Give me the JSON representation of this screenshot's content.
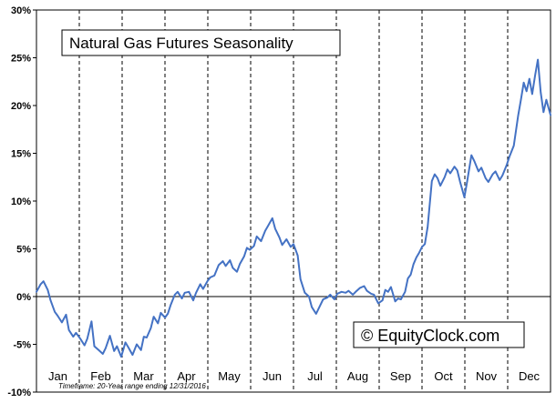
{
  "title": "Natural Gas Futures Seasonality",
  "watermark": "© EquityClock.com",
  "footnote": "Timeframe: 20-Year range ending 12/31/2016",
  "colors": {
    "line": "#4472C4",
    "grid": "#000000",
    "background": "#FFFFFF",
    "text": "#000000"
  },
  "chart_data": {
    "type": "line",
    "title": "Natural Gas Futures Seasonality",
    "xlabel": "",
    "ylabel": "",
    "x_unit": "day of year",
    "xlim": [
      1,
      365
    ],
    "ylim": [
      -10,
      30
    ],
    "y_ticks": [
      30,
      25,
      20,
      15,
      10,
      5,
      0,
      -5,
      -10
    ],
    "y_tick_labels": [
      "30%",
      "25%",
      "20%",
      "15%",
      "10%",
      "5%",
      "0%",
      "-5%",
      "-10%"
    ],
    "x_tick_labels": [
      "Jan",
      "Feb",
      "Mar",
      "Apr",
      "May",
      "Jun",
      "Jul",
      "Aug",
      "Sep",
      "Oct",
      "Nov",
      "Dec"
    ],
    "grid": "vertical dashed at month boundaries, solid zero line",
    "legend": "none",
    "series": [
      {
        "x": [
          1,
          4,
          6,
          9,
          11,
          14,
          16,
          19,
          22,
          24,
          27,
          29,
          32,
          35,
          37,
          40,
          42,
          45,
          48,
          50,
          53,
          56,
          58,
          61,
          64,
          66,
          69,
          72,
          75,
          77,
          79,
          82,
          84,
          87,
          89,
          92,
          94,
          96,
          99,
          101,
          104,
          106,
          109,
          112,
          114,
          117,
          119,
          122,
          124,
          127,
          130,
          133,
          135,
          138,
          140,
          143,
          145,
          148,
          150,
          152,
          155,
          157,
          160,
          163,
          165,
          168,
          170,
          173,
          175,
          178,
          181,
          183,
          186,
          188,
          191,
          194,
          196,
          199,
          201,
          204,
          207,
          209,
          212,
          214,
          217,
          220,
          222,
          225,
          227,
          230,
          233,
          235,
          238,
          240,
          243,
          246,
          248,
          250,
          252,
          255,
          257,
          259,
          262,
          264,
          266,
          268,
          270,
          272,
          274,
          276,
          278,
          281,
          283,
          285,
          287,
          290,
          292,
          294,
          297,
          299,
          301,
          304,
          306,
          309,
          311,
          314,
          316,
          319,
          321,
          324,
          326,
          329,
          331,
          334,
          336,
          339,
          342,
          344,
          346,
          348,
          350,
          352,
          354,
          356,
          358,
          360,
          362,
          365
        ],
        "values": [
          0.5,
          1.3,
          1.6,
          0.7,
          -0.4,
          -1.6,
          -2.0,
          -2.7,
          -1.9,
          -3.5,
          -4.2,
          -3.8,
          -4.4,
          -5.1,
          -4.4,
          -2.6,
          -5.2,
          -5.6,
          -6.0,
          -5.4,
          -4.1,
          -5.7,
          -5.2,
          -6.3,
          -4.8,
          -5.3,
          -6.1,
          -5.0,
          -5.6,
          -4.2,
          -4.3,
          -3.3,
          -2.1,
          -2.8,
          -1.7,
          -2.2,
          -1.8,
          -0.9,
          0.2,
          0.5,
          -0.2,
          0.4,
          0.5,
          -0.4,
          0.4,
          1.3,
          0.8,
          1.6,
          2.0,
          2.2,
          3.3,
          3.7,
          3.2,
          3.8,
          3.0,
          2.6,
          3.4,
          4.2,
          5.1,
          4.9,
          5.3,
          6.3,
          5.8,
          6.9,
          7.4,
          8.2,
          7.1,
          6.2,
          5.4,
          6.0,
          5.2,
          5.5,
          4.3,
          1.8,
          0.4,
          0.0,
          -1.1,
          -1.8,
          -1.2,
          -0.3,
          -0.1,
          0.2,
          -0.3,
          0.3,
          0.5,
          0.4,
          0.6,
          0.2,
          0.5,
          0.9,
          1.1,
          0.6,
          0.3,
          0.2,
          -0.7,
          -0.4,
          0.7,
          0.5,
          1.0,
          -0.5,
          -0.2,
          -0.3,
          0.5,
          1.9,
          2.3,
          3.4,
          4.1,
          4.6,
          5.2,
          5.5,
          7.3,
          12.1,
          12.8,
          12.4,
          11.6,
          12.5,
          13.3,
          12.9,
          13.6,
          13.2,
          12.0,
          10.4,
          12.1,
          14.8,
          14.2,
          13.1,
          13.5,
          12.4,
          12.0,
          12.8,
          13.1,
          12.2,
          12.7,
          13.8,
          14.7,
          15.8,
          18.9,
          20.6,
          22.4,
          21.5,
          22.8,
          21.2,
          23.1,
          24.8,
          21.4,
          19.3,
          20.6,
          19.0
        ]
      }
    ]
  }
}
